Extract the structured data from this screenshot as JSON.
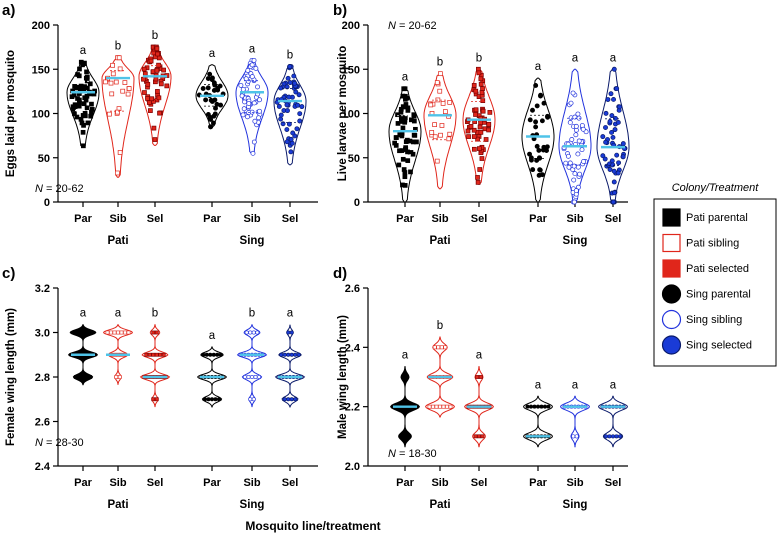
{
  "x_axis_title": "Mosquito line/treatment",
  "legend": {
    "title": "Colony/Treatment",
    "entries": [
      {
        "label": "Pati parental",
        "marker": "square",
        "fill": "#000000",
        "stroke": "#000000"
      },
      {
        "label": "Pati sibling",
        "marker": "square",
        "fill": "#ffffff",
        "stroke": "#e0261b"
      },
      {
        "label": "Pati selected",
        "marker": "square",
        "fill": "#e0261b",
        "stroke": "#e0261b"
      },
      {
        "label": "Sing parental",
        "marker": "circle",
        "fill": "#000000",
        "stroke": "#000000"
      },
      {
        "label": "Sing sibling",
        "marker": "circle",
        "fill": "#ffffff",
        "stroke": "#2233dd"
      },
      {
        "label": "Sing selected",
        "marker": "circle",
        "fill": "#1a3bd6",
        "stroke": "#0a1a6a"
      }
    ]
  },
  "colors": {
    "pati_parental": "#000000",
    "pati_sibling": "#e0261b",
    "pati_selected": "#e0261b",
    "sing_parental": "#000000",
    "sing_sibling": "#2233dd",
    "sing_selected": "#1a3bd6",
    "median": "#4fc3e8"
  },
  "chart_data": [
    {
      "type": "violin",
      "panel": "a)",
      "ylabel": "Eggs laid per mosquito",
      "ylim": [
        0,
        200
      ],
      "yticks": [
        0,
        50,
        100,
        150,
        200
      ],
      "sample_note": "= 20-62",
      "groups": [
        "Pati",
        "Sing"
      ],
      "categories": [
        "Par",
        "Sib",
        "Sel",
        "Par",
        "Sib",
        "Sel"
      ],
      "letters": [
        "a",
        "b",
        "b",
        "a",
        "a",
        "b"
      ],
      "series": [
        {
          "name": "Pati parental",
          "median": 124,
          "min": 62,
          "max": 158,
          "n": 60
        },
        {
          "name": "Pati sibling",
          "median": 140,
          "min": 28,
          "max": 163,
          "n": 24
        },
        {
          "name": "Pati selected",
          "median": 142,
          "min": 64,
          "max": 175,
          "n": 62
        },
        {
          "name": "Sing parental",
          "median": 120,
          "min": 85,
          "max": 155,
          "n": 32
        },
        {
          "name": "Sing sibling",
          "median": 124,
          "min": 55,
          "max": 160,
          "n": 58
        },
        {
          "name": "Sing selected",
          "median": 114,
          "min": 42,
          "max": 153,
          "n": 58
        }
      ]
    },
    {
      "type": "violin",
      "panel": "b)",
      "ylabel": "Live larvae per mosquito",
      "ylim": [
        0,
        200
      ],
      "yticks": [
        0,
        50,
        100,
        150,
        200
      ],
      "sample_note": "= 20-62",
      "groups": [
        "Pati",
        "Sing"
      ],
      "categories": [
        "Par",
        "Sib",
        "Sel",
        "Par",
        "Sib",
        "Sel"
      ],
      "letters": [
        "a",
        "b",
        "b",
        "a",
        "a",
        "a"
      ],
      "series": [
        {
          "name": "Pati parental",
          "median": 80,
          "min": 0,
          "max": 128,
          "n": 58
        },
        {
          "name": "Pati sibling",
          "median": 98,
          "min": 15,
          "max": 145,
          "n": 22
        },
        {
          "name": "Pati selected",
          "median": 93,
          "min": 20,
          "max": 150,
          "n": 62
        },
        {
          "name": "Sing parental",
          "median": 74,
          "min": 0,
          "max": 140,
          "n": 32
        },
        {
          "name": "Sing sibling",
          "median": 63,
          "min": 0,
          "max": 150,
          "n": 55
        },
        {
          "name": "Sing selected",
          "median": 62,
          "min": 0,
          "max": 150,
          "n": 58
        }
      ]
    },
    {
      "type": "violin",
      "panel": "c)",
      "ylabel": "Female wing length (mm)",
      "ylim": [
        2.4,
        3.2
      ],
      "yticks": [
        "2.4",
        "2.6",
        "2.8",
        "3.0",
        "3.2"
      ],
      "sample_note": "= 28-30",
      "groups": [
        "Pati",
        "Sing"
      ],
      "categories": [
        "Par",
        "Sib",
        "Sel",
        "Par",
        "Sib",
        "Sel"
      ],
      "letters": [
        "a",
        "a",
        "b",
        "a",
        "b",
        "a"
      ],
      "series": [
        {
          "name": "Pati parental",
          "median": 2.9,
          "levels": [
            2.8,
            2.9,
            3.0
          ],
          "widths": [
            0.6,
            0.9,
            0.8
          ]
        },
        {
          "name": "Pati sibling",
          "median": 2.9,
          "levels": [
            2.8,
            2.9,
            3.0
          ],
          "widths": [
            0.2,
            0.6,
            0.9
          ]
        },
        {
          "name": "Pati selected",
          "median": 2.8,
          "levels": [
            2.7,
            2.8,
            2.9,
            3.0
          ],
          "widths": [
            0.2,
            0.9,
            0.8,
            0.3
          ]
        },
        {
          "name": "Sing parental",
          "median": 2.8,
          "levels": [
            2.7,
            2.8,
            2.9
          ],
          "widths": [
            0.6,
            0.9,
            0.7
          ]
        },
        {
          "name": "Sing sibling",
          "median": 2.9,
          "levels": [
            2.7,
            2.8,
            2.9,
            3.0
          ],
          "widths": [
            0.2,
            0.6,
            0.9,
            0.5
          ]
        },
        {
          "name": "Sing selected",
          "median": 2.8,
          "levels": [
            2.7,
            2.8,
            2.9,
            3.0
          ],
          "widths": [
            0.5,
            0.9,
            0.7,
            0.2
          ]
        }
      ]
    },
    {
      "type": "violin",
      "panel": "d)",
      "ylabel": "Male wing length (mm)",
      "ylim": [
        2.0,
        2.6
      ],
      "yticks": [
        "2.0",
        "2.2",
        "2.4",
        "2.6"
      ],
      "sample_note": "= 18-30",
      "groups": [
        "Pati",
        "Sing"
      ],
      "categories": [
        "Par",
        "Sib",
        "Sel",
        "Par",
        "Sib",
        "Sel"
      ],
      "letters": [
        "a",
        "b",
        "a",
        "a",
        "a",
        "a"
      ],
      "series": [
        {
          "name": "Pati parental",
          "median": 2.2,
          "levels": [
            2.1,
            2.2,
            2.3
          ],
          "widths": [
            0.4,
            0.9,
            0.25
          ]
        },
        {
          "name": "Pati sibling",
          "median": 2.3,
          "levels": [
            2.2,
            2.3,
            2.4
          ],
          "widths": [
            0.9,
            0.8,
            0.45
          ]
        },
        {
          "name": "Pati selected",
          "median": 2.2,
          "levels": [
            2.1,
            2.2,
            2.3
          ],
          "widths": [
            0.4,
            0.9,
            0.25
          ]
        },
        {
          "name": "Sing parental",
          "median": 2.1,
          "levels": [
            2.1,
            2.2
          ],
          "widths": [
            0.9,
            0.9
          ]
        },
        {
          "name": "Sing sibling",
          "median": 2.2,
          "levels": [
            2.1,
            2.2
          ],
          "widths": [
            0.25,
            0.9
          ]
        },
        {
          "name": "Sing selected",
          "median": 2.2,
          "levels": [
            2.1,
            2.2
          ],
          "widths": [
            0.6,
            0.9
          ]
        }
      ]
    }
  ]
}
